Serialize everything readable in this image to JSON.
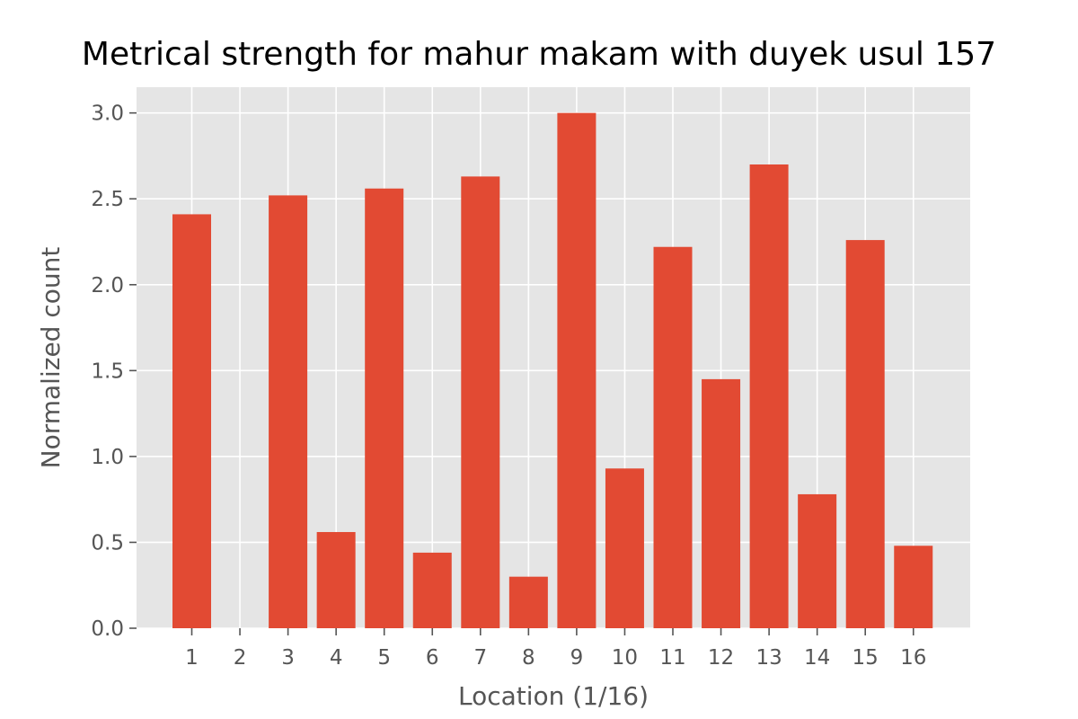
{
  "chart_data": {
    "type": "bar",
    "title": "Metrical strength for mahur makam with duyek usul 157",
    "xlabel": "Location (1/16)",
    "ylabel": "Normalized count",
    "categories": [
      "1",
      "2",
      "3",
      "4",
      "5",
      "6",
      "7",
      "8",
      "9",
      "10",
      "11",
      "12",
      "13",
      "14",
      "15",
      "16"
    ],
    "values": [
      2.41,
      0.0,
      2.52,
      0.56,
      2.56,
      0.44,
      2.63,
      0.3,
      3.0,
      0.93,
      2.22,
      1.45,
      2.7,
      0.78,
      2.26,
      0.48
    ],
    "ylim": [
      0,
      3.15
    ],
    "yticks": [
      0.0,
      0.5,
      1.0,
      1.5,
      2.0,
      2.5,
      3.0
    ],
    "ytick_labels": [
      "0.0",
      "0.5",
      "1.0",
      "1.5",
      "2.0",
      "2.5",
      "3.0"
    ],
    "grid": true,
    "style": "ggplot",
    "colors": {
      "bar": "#E24A33",
      "background": "#E5E5E5",
      "grid": "#FFFFFF"
    }
  }
}
